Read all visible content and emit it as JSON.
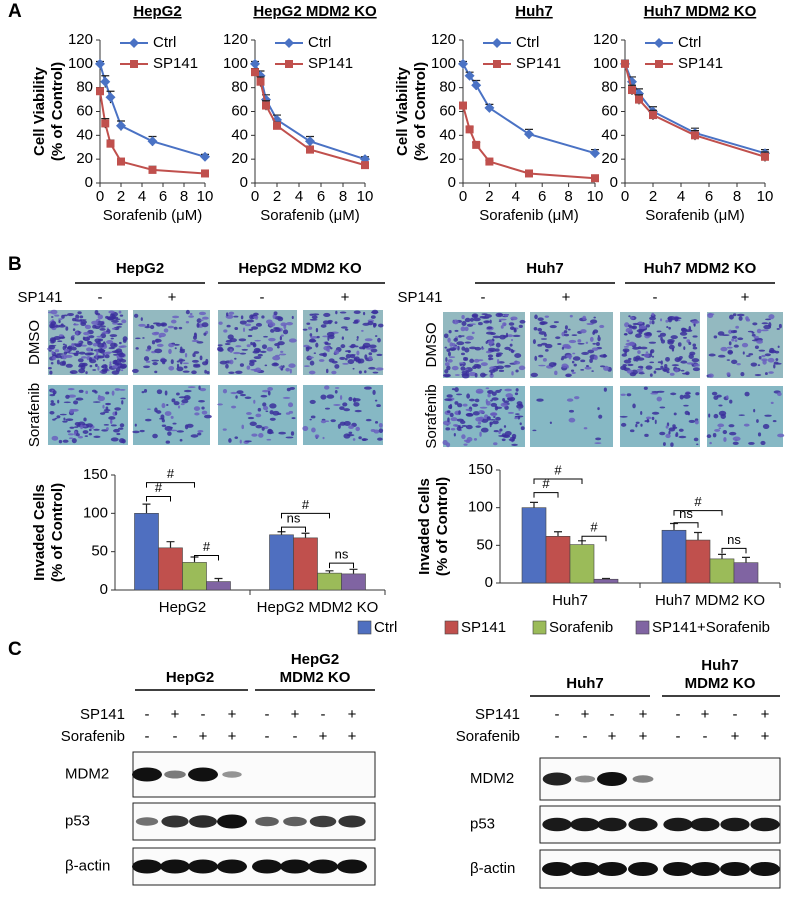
{
  "panel_labels": [
    "A",
    "B",
    "C"
  ],
  "chart_data": [
    {
      "type": "line",
      "title": "HepG2",
      "y_label": [
        "Cell Viability",
        "(% of Control)"
      ],
      "x_label": "Sorafenib (μM)",
      "x": [
        0,
        0.5,
        1,
        2,
        5,
        10
      ],
      "xlim": [
        0,
        10
      ],
      "xticks": [
        0,
        2,
        4,
        6,
        8,
        10
      ],
      "ylim": [
        0,
        120
      ],
      "yticks": [
        0,
        20,
        40,
        60,
        80,
        100,
        120
      ],
      "legend": "upper right",
      "series": [
        {
          "name": "Ctrl",
          "color": "#4a72c4",
          "marker": "diamond",
          "values": [
            100,
            85,
            72,
            48,
            35,
            22
          ],
          "errors": [
            2,
            5,
            5,
            4,
            4,
            2
          ]
        },
        {
          "name": "SP141",
          "color": "#c0504d",
          "marker": "square",
          "values": [
            77,
            50,
            33,
            18,
            11,
            8
          ],
          "errors": [
            3,
            4,
            3,
            2,
            3,
            1
          ]
        }
      ]
    },
    {
      "type": "line",
      "title": "HepG2 MDM2 KO",
      "x_label": "Sorafenib (μM)",
      "x": [
        0,
        0.5,
        1,
        2,
        5,
        10
      ],
      "xlim": [
        0,
        10
      ],
      "xticks": [
        0,
        2,
        4,
        6,
        8,
        10
      ],
      "ylim": [
        0,
        120
      ],
      "yticks": [
        0,
        20,
        40,
        60,
        80,
        100,
        120
      ],
      "legend": "upper right",
      "series": [
        {
          "name": "Ctrl",
          "color": "#4a72c4",
          "marker": "diamond",
          "values": [
            100,
            90,
            70,
            53,
            35,
            20
          ],
          "errors": [
            2,
            4,
            4,
            4,
            4,
            2
          ]
        },
        {
          "name": "SP141",
          "color": "#c0504d",
          "marker": "square",
          "values": [
            93,
            85,
            65,
            48,
            28,
            15
          ],
          "errors": [
            3,
            4,
            4,
            3,
            3,
            2
          ]
        }
      ]
    },
    {
      "type": "line",
      "title": "Huh7",
      "y_label": [
        "Cell Viability",
        "(% of Control)"
      ],
      "x_label": "Sorafenib (μM)",
      "x": [
        0,
        0.5,
        1,
        2,
        5,
        10
      ],
      "xlim": [
        0,
        10
      ],
      "xticks": [
        0,
        2,
        4,
        6,
        8,
        10
      ],
      "ylim": [
        0,
        120
      ],
      "yticks": [
        0,
        20,
        40,
        60,
        80,
        100,
        120
      ],
      "legend": "upper right",
      "series": [
        {
          "name": "Ctrl",
          "color": "#4a72c4",
          "marker": "diamond",
          "values": [
            100,
            90,
            82,
            63,
            41,
            25
          ],
          "errors": [
            2,
            3,
            4,
            3,
            4,
            3
          ]
        },
        {
          "name": "SP141",
          "color": "#c0504d",
          "marker": "square",
          "values": [
            65,
            45,
            32,
            18,
            8,
            4
          ],
          "errors": [
            2,
            2,
            2,
            1,
            1,
            1
          ]
        }
      ]
    },
    {
      "type": "line",
      "title": "Huh7 MDM2 KO",
      "x_label": "Sorafenib (μM)",
      "x": [
        0,
        0.5,
        1,
        2,
        5,
        10
      ],
      "xlim": [
        0,
        10
      ],
      "xticks": [
        0,
        2,
        4,
        6,
        8,
        10
      ],
      "ylim": [
        0,
        120
      ],
      "yticks": [
        0,
        20,
        40,
        60,
        80,
        100,
        120
      ],
      "legend": "upper right",
      "series": [
        {
          "name": "Ctrl",
          "color": "#4a72c4",
          "marker": "diamond",
          "values": [
            100,
            85,
            75,
            60,
            42,
            25
          ],
          "errors": [
            2,
            4,
            4,
            4,
            4,
            3
          ]
        },
        {
          "name": "SP141",
          "color": "#c0504d",
          "marker": "square",
          "values": [
            100,
            78,
            70,
            57,
            40,
            22
          ],
          "errors": [
            3,
            4,
            4,
            4,
            4,
            4
          ]
        }
      ]
    },
    {
      "type": "bar",
      "y_label": [
        "Invaded Cells",
        "(% of Control)"
      ],
      "categories": [
        "HepG2",
        "HepG2 MDM2 KO"
      ],
      "ylim": [
        0,
        150
      ],
      "yticks": [
        0,
        50,
        100,
        150
      ],
      "legend": "bottom",
      "series": [
        {
          "name": "Ctrl",
          "color": "#4f6fc0",
          "values": [
            100,
            72
          ],
          "errors": [
            12,
            4
          ]
        },
        {
          "name": "SP141",
          "color": "#c0504d",
          "values": [
            55,
            68
          ],
          "errors": [
            8,
            6
          ]
        },
        {
          "name": "Sorafenib",
          "color": "#9bbb59",
          "values": [
            36,
            22
          ],
          "errors": [
            7,
            3
          ]
        },
        {
          "name": "SP141+Sorafenib",
          "color": "#8064a2",
          "values": [
            11,
            21
          ],
          "errors": [
            4,
            6
          ]
        }
      ],
      "annotations": [
        "#",
        "#",
        "#",
        "#",
        "ns",
        "ns"
      ]
    },
    {
      "type": "bar",
      "y_label": [
        "Invaded Cells",
        "(% of Control)"
      ],
      "categories": [
        "Huh7",
        "Huh7 MDM2 KO"
      ],
      "ylim": [
        0,
        150
      ],
      "yticks": [
        0,
        50,
        100,
        150
      ],
      "series": [
        {
          "color": "#4f6fc0",
          "values": [
            100,
            70
          ],
          "errors": [
            7,
            9
          ]
        },
        {
          "color": "#c0504d",
          "values": [
            62,
            57
          ],
          "errors": [
            6,
            10
          ]
        },
        {
          "color": "#9bbb59",
          "values": [
            51,
            32
          ],
          "errors": [
            5,
            6
          ]
        },
        {
          "color": "#8064a2",
          "values": [
            5,
            27
          ],
          "errors": [
            1,
            7
          ]
        }
      ],
      "annotations": [
        "#",
        "#",
        "#",
        "#",
        "ns",
        "ns"
      ]
    }
  ],
  "invasion": [
    {
      "treatment": "SP141",
      "groups": [
        {
          "title": "HepG2",
          "signs": [
            "-",
            "+"
          ]
        },
        {
          "title": "HepG2 MDM2 KO",
          "signs": [
            "-",
            "+"
          ]
        }
      ],
      "rows": [
        "DMSO",
        "Sorafenib"
      ]
    },
    {
      "treatment": "SP141",
      "groups": [
        {
          "title": "Huh7",
          "signs": [
            "-",
            "+"
          ]
        },
        {
          "title": "Huh7 MDM2 KO",
          "signs": [
            "-",
            "+"
          ]
        }
      ],
      "rows": [
        "DMSO",
        "Sorafenib"
      ]
    }
  ],
  "western": [
    {
      "groups": [
        [
          "HepG2"
        ],
        [
          "HepG2",
          "MDM2 KO"
        ]
      ],
      "conditions": [
        {
          "label": "SP141",
          "signs": [
            "-",
            "+",
            "-",
            "+",
            "-",
            "+",
            "-",
            "+"
          ]
        },
        {
          "label": "Sorafenib",
          "signs": [
            "-",
            "-",
            "+",
            "+",
            "-",
            "-",
            "+",
            "+"
          ]
        }
      ],
      "proteins": [
        "MDM2",
        "p53",
        "β-actin"
      ]
    },
    {
      "groups": [
        [
          "Huh7"
        ],
        [
          "Huh7",
          "MDM2 KO"
        ]
      ],
      "conditions": [
        {
          "label": "SP141",
          "signs": [
            "-",
            "+",
            "-",
            "+",
            "-",
            "+",
            "-",
            "+"
          ]
        },
        {
          "label": "Sorafenib",
          "signs": [
            "-",
            "-",
            "+",
            "+",
            "-",
            "-",
            "+",
            "+"
          ]
        }
      ],
      "proteins": [
        "MDM2",
        "p53",
        "β-actin"
      ]
    }
  ]
}
